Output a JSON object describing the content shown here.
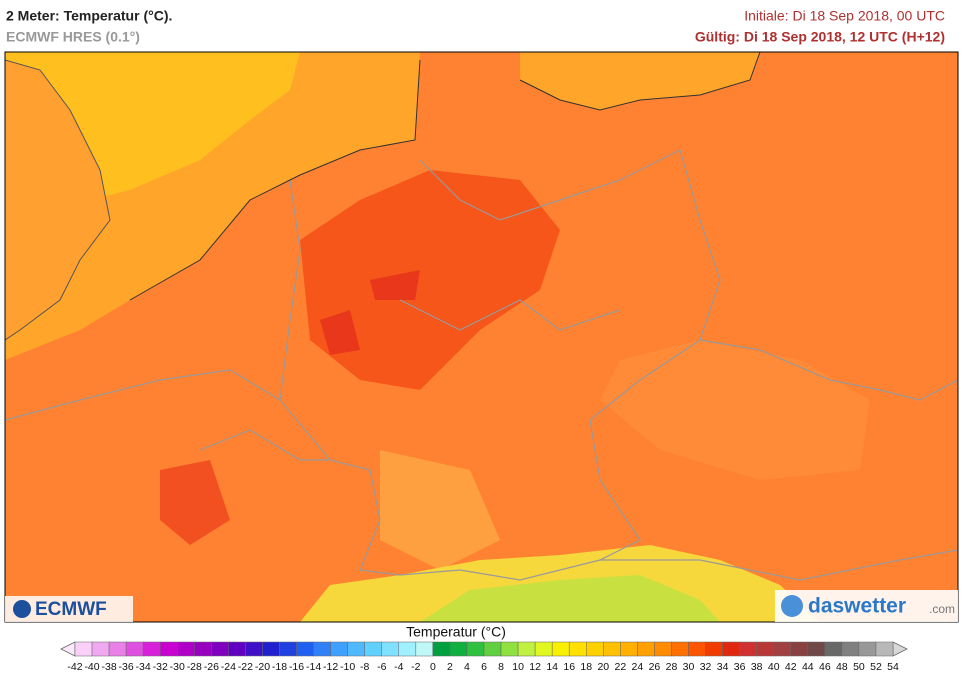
{
  "header": {
    "title": "2 Meter: Temperatur (°C).",
    "model": "ECMWF HRES (0.1°)",
    "initial": "Initiale: Di 18 Sep 2018, 00 UTC",
    "valid": "Gültig: Di 18 Sep 2018, 12 UTC (H+12)"
  },
  "logos": {
    "left": "ECMWF",
    "right": "daswetter",
    "right_suffix": ".com"
  },
  "colorbar": {
    "title": "Temperatur (°C)",
    "ticks": [
      -42,
      -40,
      -38,
      -36,
      -34,
      -32,
      -30,
      -28,
      -26,
      -24,
      -22,
      -20,
      -18,
      -16,
      -14,
      -12,
      -10,
      -8,
      -6,
      -4,
      -2,
      0,
      2,
      4,
      6,
      8,
      10,
      12,
      14,
      16,
      18,
      20,
      22,
      24,
      26,
      28,
      30,
      32,
      34,
      36,
      38,
      40,
      42,
      44,
      46,
      48,
      50,
      52,
      54
    ],
    "colors": [
      "#f8d0f8",
      "#f0a8f0",
      "#e880e8",
      "#e050e0",
      "#d820d8",
      "#c800d0",
      "#b000c8",
      "#9800c0",
      "#8000c0",
      "#6000c0",
      "#4010c8",
      "#2020d0",
      "#2040e0",
      "#2060f0",
      "#3080f8",
      "#40a0ff",
      "#50b8ff",
      "#60d0ff",
      "#80e0ff",
      "#a0f0ff",
      "#c0f8f8",
      "#00a040",
      "#10b040",
      "#30c040",
      "#60d040",
      "#90e040",
      "#c0f040",
      "#e0f820",
      "#f8f000",
      "#ffe000",
      "#ffd000",
      "#ffc000",
      "#ffb000",
      "#ffa000",
      "#ff8c00",
      "#ff7000",
      "#ff5500",
      "#f03c00",
      "#e02810",
      "#d03030",
      "#b83838",
      "#a04040",
      "#884040",
      "#704848",
      "#686868",
      "#808080",
      "#989898",
      "#b8b8b8"
    ],
    "under_color": "#fbe8fb",
    "over_color": "#d8d8d8"
  }
}
